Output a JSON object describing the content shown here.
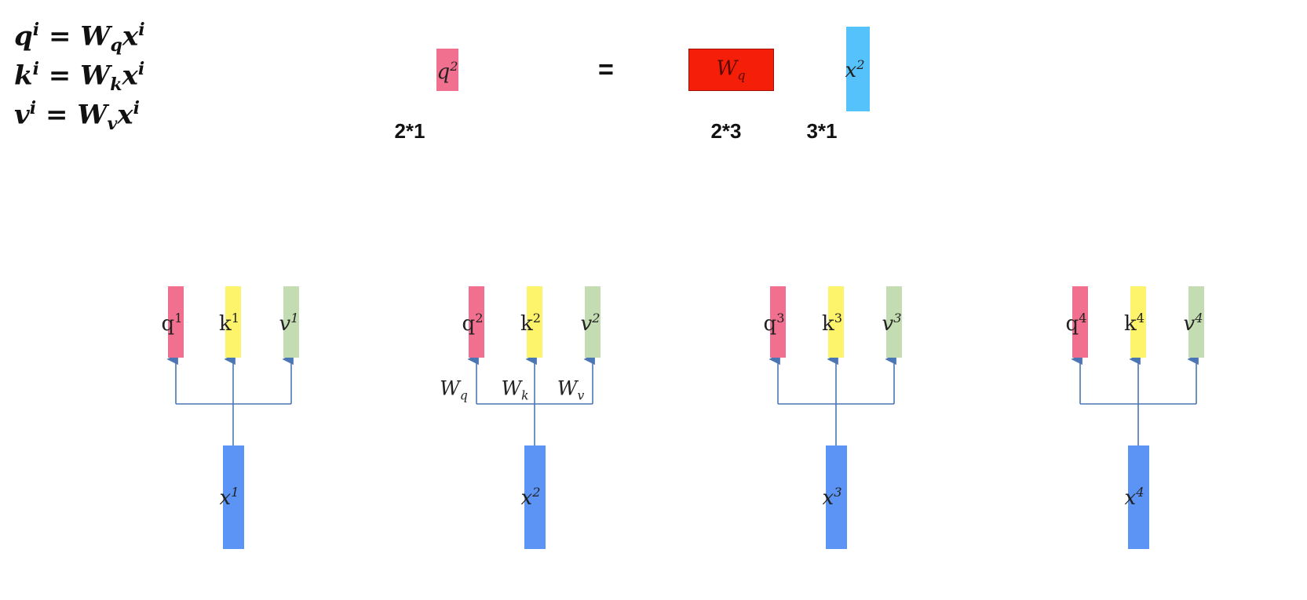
{
  "formulas": {
    "q": {
      "lhs": "q",
      "sup": "i",
      "op": "=",
      "w": "W",
      "sub": "q",
      "x": "x",
      "xsup": "i"
    },
    "k": {
      "lhs": "k",
      "sup": "i",
      "op": "=",
      "w": "W",
      "sub": "k",
      "x": "x",
      "xsup": "i"
    },
    "v": {
      "lhs": "v",
      "sup": "i",
      "op": "=",
      "w": "W",
      "sub": "v",
      "x": "x",
      "xsup": "i"
    }
  },
  "product": {
    "q_base": "q",
    "q_sup": "2",
    "q_dim": "2*1",
    "equals": "=",
    "w_base": "W",
    "w_sub": "q",
    "w_dim": "2*3",
    "x_base": "x",
    "x_sup": "2",
    "x_dim": "3*1"
  },
  "weights": {
    "wq_base": "W",
    "wq_sub": "q",
    "wk_base": "W",
    "wk_sub": "k",
    "wv_base": "W",
    "wv_sub": "v"
  },
  "columns": [
    {
      "index": "1",
      "q": "q",
      "k": "k",
      "v": "v",
      "x": "x"
    },
    {
      "index": "2",
      "q": "q",
      "k": "k",
      "v": "v",
      "x": "x"
    },
    {
      "index": "3",
      "q": "q",
      "k": "k",
      "v": "v",
      "x": "x"
    },
    {
      "index": "4",
      "q": "q",
      "k": "k",
      "v": "v",
      "x": "x"
    }
  ],
  "colors": {
    "q": "#f1708f",
    "k": "#fdf46b",
    "v": "#c4dcb1",
    "x": "#5b94f5",
    "x_small": "#56c2fb",
    "w": "#f41e09",
    "line": "#4a76b4"
  }
}
